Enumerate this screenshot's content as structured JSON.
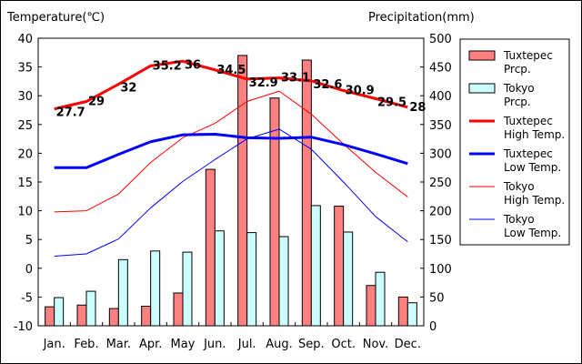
{
  "chart_data": {
    "type": "bar+line",
    "left_axis_title": "Temperature(℃)",
    "right_axis_title": "Precipitation(mm)",
    "left_axis": {
      "min": -10,
      "max": 40,
      "step": 5
    },
    "right_axis": {
      "min": 0,
      "max": 500,
      "step": 50
    },
    "categories": [
      "Jan.",
      "Feb.",
      "Mar.",
      "Apr.",
      "May",
      "Jun.",
      "Jul.",
      "Aug.",
      "Sep.",
      "Oct.",
      "Nov.",
      "Dec."
    ],
    "bar_series": [
      {
        "name": "Tuxtepec Prcp.",
        "color": "#ff8080",
        "values": [
          33,
          36,
          30,
          34,
          57,
          272,
          470,
          396,
          462,
          208,
          70,
          50
        ]
      },
      {
        "name": "Tokyo Prcp.",
        "color": "#ccffff",
        "values": [
          49,
          60,
          115,
          130,
          128,
          165,
          162,
          155,
          209,
          163,
          93,
          40
        ]
      }
    ],
    "line_series": [
      {
        "name": "Tuxtepec High Temp.",
        "color": "#ff0000",
        "width": 3,
        "values": [
          27.7,
          29,
          32,
          35.2,
          36,
          34.5,
          32.9,
          33.1,
          32.6,
          30.9,
          29.5,
          28
        ],
        "labels": [
          "27.7",
          "29",
          "32",
          "35.2",
          "36",
          "34.5",
          "32.9",
          "33.1",
          "32.6",
          "30.9",
          "29.5",
          "28"
        ]
      },
      {
        "name": "Tuxtepec Low Temp.",
        "color": "#0000ff",
        "width": 3,
        "values": [
          17.5,
          17.5,
          19.8,
          22,
          23.2,
          23.3,
          22.7,
          22.6,
          22.8,
          21.5,
          19.9,
          18.2
        ]
      },
      {
        "name": "Tokyo High Temp.",
        "color": "#ff0000",
        "width": 1,
        "values": [
          9.8,
          10,
          12.9,
          18.4,
          22.7,
          25.2,
          29,
          30.8,
          26.8,
          21.6,
          16.7,
          12.4
        ]
      },
      {
        "name": "Tokyo Low Temp.",
        "color": "#0000ff",
        "width": 1,
        "values": [
          2.1,
          2.5,
          5.1,
          10.5,
          15.1,
          18.9,
          22.5,
          24.2,
          20.7,
          15,
          9,
          4.6
        ]
      }
    ],
    "legend": {
      "placement": "right",
      "entries": [
        {
          "line1": "Tuxtepec",
          "line2": "Prcp."
        },
        {
          "line1": "Tokyo",
          "line2": "Prcp."
        },
        {
          "line1": "Tuxtepec",
          "line2": "High Temp."
        },
        {
          "line1": "Tuxtepec",
          "line2": "Low Temp."
        },
        {
          "line1": "Tokyo",
          "line2": "High Temp."
        },
        {
          "line1": "Tokyo",
          "line2": "Low Temp."
        }
      ]
    },
    "grid": false
  }
}
